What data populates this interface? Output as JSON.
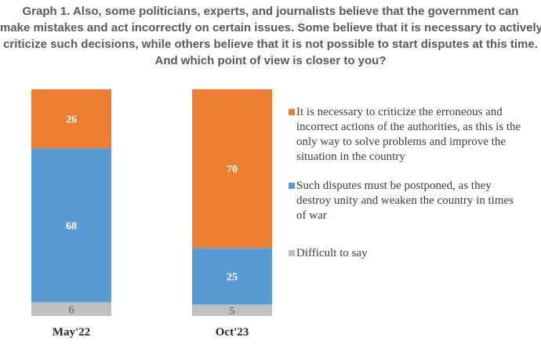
{
  "title_lines": [
    "Graph 1. Also, some politicians, experts, and journalists believe that the government can",
    "make mistakes and act incorrectly on certain issues. Some believe that it is necessary to actively",
    "criticize such decisions, while others believe that it is not possible to start disputes at this time.",
    "And which point of view is closer to you?"
  ],
  "chart_data": {
    "type": "bar",
    "stacked": true,
    "categories": [
      "May'22",
      "Oct'23"
    ],
    "series": [
      {
        "name": "Difficult to say",
        "color": "#bfbfbf",
        "label_color": "#595959",
        "values": [
          6,
          5
        ]
      },
      {
        "name": "Such disputes must be postponed, as they destroy unity and weaken the country in times of war",
        "color": "#5b9bd5",
        "label_color": "#ffffff",
        "values": [
          68,
          25
        ]
      },
      {
        "name": "It is necessary to criticize the erroneous and incorrect actions of the authorities, as this is the only way to solve problems and improve the situation in the country",
        "color": "#ed7d31",
        "label_color": "#ffffff",
        "values": [
          26,
          70
        ]
      }
    ],
    "ylim": [
      0,
      100
    ],
    "grid": false,
    "legend_position": "right"
  }
}
